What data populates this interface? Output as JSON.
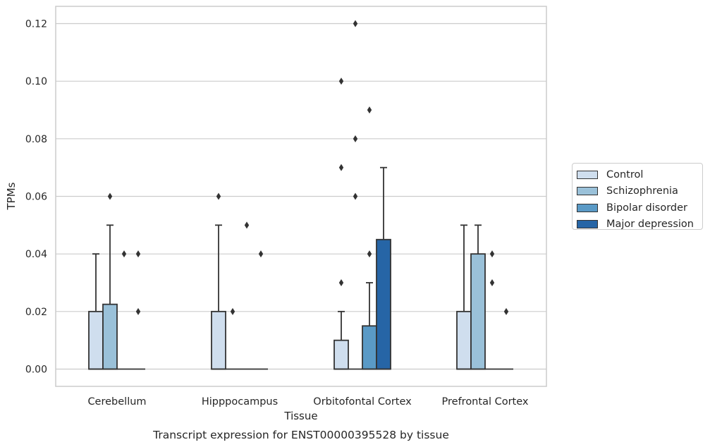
{
  "chart_data": {
    "type": "boxplot",
    "title": "Transcript expression for ENST00000395528 by tissue",
    "xlabel": "Tissue",
    "ylabel": "TPMs",
    "ylim": [
      -0.006,
      0.126
    ],
    "yticks": [
      "0.00",
      "0.02",
      "0.04",
      "0.06",
      "0.08",
      "0.10",
      "0.12"
    ],
    "ytick_values": [
      0,
      0.02,
      0.04,
      0.06,
      0.08,
      0.1,
      0.12
    ],
    "grid": true,
    "legend_position": "right",
    "categories": [
      "Cerebellum",
      "Hipppocampus",
      "Orbitofontal Cortex",
      "Prefrontal Cortex"
    ],
    "series": [
      {
        "name": "Control",
        "color": "#cfdeee",
        "boxes": [
          {
            "q1": 0,
            "median": 0,
            "q3": 0.02,
            "whisker_low": 0,
            "whisker_high": 0.04,
            "outliers": []
          },
          {
            "q1": 0,
            "median": 0,
            "q3": 0.02,
            "whisker_low": 0,
            "whisker_high": 0.05,
            "outliers": [
              0.06
            ]
          },
          {
            "q1": 0,
            "median": 0,
            "q3": 0.01,
            "whisker_low": 0,
            "whisker_high": 0.02,
            "outliers": [
              0.03,
              0.07,
              0.1
            ]
          },
          {
            "q1": 0,
            "median": 0,
            "q3": 0.02,
            "whisker_low": 0,
            "whisker_high": 0.05,
            "outliers": []
          }
        ]
      },
      {
        "name": "Schizophrenia",
        "color": "#9ac1d9",
        "boxes": [
          {
            "q1": 0,
            "median": 0,
            "q3": 0.0225,
            "whisker_low": 0,
            "whisker_high": 0.05,
            "outliers": [
              0.06
            ]
          },
          {
            "q1": 0,
            "median": 0,
            "q3": 0,
            "whisker_low": 0,
            "whisker_high": 0,
            "outliers": [
              0.02
            ]
          },
          {
            "q1": 0,
            "median": 0,
            "q3": 0,
            "whisker_low": 0,
            "whisker_high": 0,
            "outliers": [
              0.06,
              0.08,
              0.12
            ]
          },
          {
            "q1": 0,
            "median": 0,
            "q3": 0.04,
            "whisker_low": 0,
            "whisker_high": 0.05,
            "outliers": []
          }
        ]
      },
      {
        "name": "Bipolar disorder",
        "color": "#5a9ac6",
        "boxes": [
          {
            "q1": 0,
            "median": 0,
            "q3": 0,
            "whisker_low": 0,
            "whisker_high": 0,
            "outliers": [
              0.04
            ]
          },
          {
            "q1": 0,
            "median": 0,
            "q3": 0,
            "whisker_low": 0,
            "whisker_high": 0,
            "outliers": [
              0.05
            ]
          },
          {
            "q1": 0,
            "median": 0,
            "q3": 0.015,
            "whisker_low": 0,
            "whisker_high": 0.03,
            "outliers": [
              0.04,
              0.09
            ]
          },
          {
            "q1": 0,
            "median": 0,
            "q3": 0,
            "whisker_low": 0,
            "whisker_high": 0,
            "outliers": [
              0.03,
              0.04
            ]
          }
        ]
      },
      {
        "name": "Major depression",
        "color": "#2665a6",
        "boxes": [
          {
            "q1": 0,
            "median": 0,
            "q3": 0,
            "whisker_low": 0,
            "whisker_high": 0,
            "outliers": [
              0.02,
              0.04
            ]
          },
          {
            "q1": 0,
            "median": 0,
            "q3": 0,
            "whisker_low": 0,
            "whisker_high": 0,
            "outliers": [
              0.04
            ]
          },
          {
            "q1": 0,
            "median": 0,
            "q3": 0.045,
            "whisker_low": 0,
            "whisker_high": 0.07,
            "outliers": []
          },
          {
            "q1": 0,
            "median": 0,
            "q3": 0,
            "whisker_low": 0,
            "whisker_high": 0,
            "outliers": [
              0.02
            ]
          }
        ]
      }
    ]
  }
}
